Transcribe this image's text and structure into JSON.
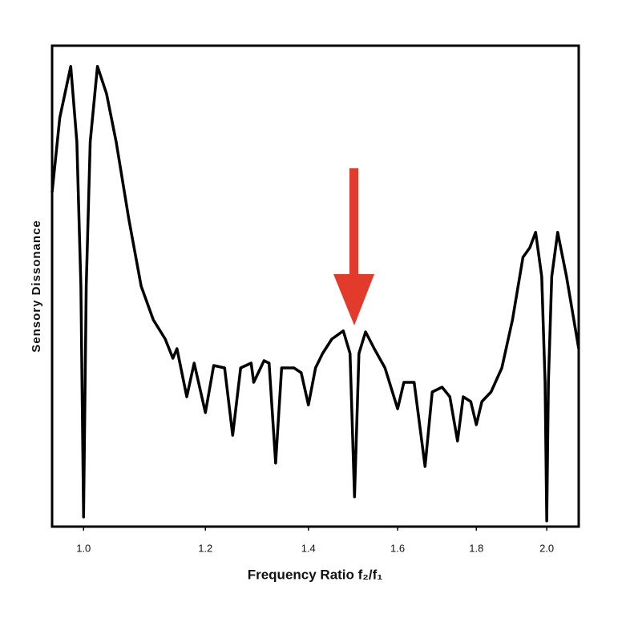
{
  "chart_data": {
    "type": "line",
    "xlabel": "Frequency Ratio f₂/f₁",
    "ylabel": "Sensory Dissonance",
    "color": "#000000",
    "xscale": "log",
    "xlim": [
      0.954,
      2.098
    ],
    "ylim": [
      0,
      1
    ],
    "xticks": [
      {
        "value": 1,
        "label": "1.0"
      },
      1.2,
      1.4,
      1.6,
      1.8,
      {
        "value": 2,
        "label": "2.0"
      }
    ],
    "x": [
      0.954,
      0.965,
      0.981,
      0.99,
      0.996,
      1.0,
      1.004,
      1.01,
      1.021,
      1.035,
      1.05,
      1.07,
      1.09,
      1.11,
      1.13,
      1.143,
      1.15,
      1.167,
      1.18,
      1.2,
      1.215,
      1.235,
      1.25,
      1.265,
      1.285,
      1.29,
      1.31,
      1.32,
      1.333,
      1.345,
      1.37,
      1.385,
      1.4,
      1.415,
      1.43,
      1.45,
      1.475,
      1.49,
      1.5,
      1.51,
      1.525,
      1.545,
      1.57,
      1.6,
      1.615,
      1.64,
      1.667,
      1.685,
      1.71,
      1.73,
      1.75,
      1.765,
      1.785,
      1.8,
      1.815,
      1.84,
      1.87,
      1.9,
      1.93,
      1.95,
      1.967,
      1.985,
      1.995,
      2.0,
      2.005,
      2.015,
      2.033,
      2.06,
      2.098
    ],
    "values": [
      0.695,
      0.85,
      0.957,
      0.8,
      0.5,
      0.02,
      0.5,
      0.8,
      0.957,
      0.9,
      0.8,
      0.64,
      0.5,
      0.43,
      0.39,
      0.35,
      0.37,
      0.27,
      0.34,
      0.237,
      0.335,
      0.33,
      0.19,
      0.33,
      0.34,
      0.3,
      0.345,
      0.34,
      0.132,
      0.33,
      0.33,
      0.32,
      0.253,
      0.33,
      0.36,
      0.39,
      0.407,
      0.36,
      0.062,
      0.36,
      0.405,
      0.37,
      0.33,
      0.245,
      0.3,
      0.3,
      0.125,
      0.28,
      0.29,
      0.27,
      0.178,
      0.27,
      0.26,
      0.212,
      0.26,
      0.28,
      0.33,
      0.43,
      0.56,
      0.58,
      0.612,
      0.52,
      0.3,
      0.012,
      0.3,
      0.52,
      0.612,
      0.52,
      0.37
    ]
  }
}
